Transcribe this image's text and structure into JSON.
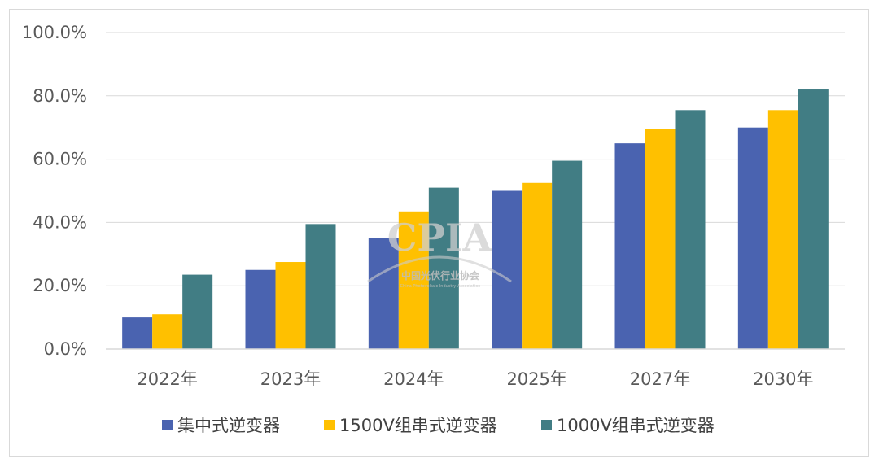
{
  "chart_data": {
    "type": "bar",
    "title": "",
    "xlabel": "",
    "ylabel": "",
    "ylim": [
      0,
      100
    ],
    "yticks": [
      "0.0%",
      "20.0%",
      "40.0%",
      "60.0%",
      "80.0%",
      "100.0%"
    ],
    "grid": true,
    "legend_position": "bottom",
    "categories": [
      "2022年",
      "2023年",
      "2024年",
      "2025年",
      "2027年",
      "2030年"
    ],
    "series": [
      {
        "name": "集中式逆变器",
        "color": "#4a63b0",
        "values": [
          10,
          25,
          35,
          50,
          65,
          70
        ]
      },
      {
        "name": "1500V组串式逆变器",
        "color": "#ffc000",
        "values": [
          11,
          27.5,
          43.5,
          52.5,
          69.5,
          75.5
        ]
      },
      {
        "name": "1000V组串式逆变器",
        "color": "#417d84",
        "values": [
          23.5,
          39.5,
          51,
          59.5,
          75.5,
          82
        ]
      }
    ]
  },
  "watermark": {
    "logo_text": "CPIA",
    "org_name_cn": "中国光伏行业协会",
    "org_name_en": "China Photovoltaic Industry Association"
  }
}
